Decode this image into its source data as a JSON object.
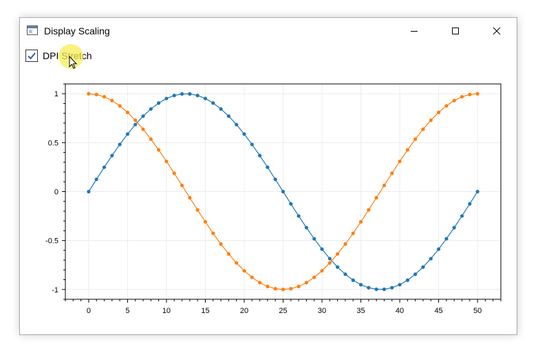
{
  "window": {
    "title": "Display Scaling",
    "icon": "window-app-icon",
    "controls": [
      "minimize-icon",
      "maximize-icon",
      "close-icon"
    ]
  },
  "checkbox": {
    "label": "DPI Stretch",
    "checked": true
  },
  "chart_data": {
    "type": "scatter",
    "title": "",
    "xlabel": "",
    "ylabel": "",
    "xlim": [
      -3,
      53
    ],
    "ylim": [
      -1.1,
      1.1
    ],
    "x_ticks": [
      "0",
      "5",
      "10",
      "15",
      "20",
      "25",
      "30",
      "35",
      "40",
      "45",
      "50"
    ],
    "y_ticks": [
      "1",
      "0.5",
      "0",
      "-0.5",
      "-1"
    ],
    "grid": true,
    "legend": "none",
    "lines": true,
    "x": [
      0,
      1,
      2,
      3,
      4,
      5,
      6,
      7,
      8,
      9,
      10,
      11,
      12,
      13,
      14,
      15,
      16,
      17,
      18,
      19,
      20,
      21,
      22,
      23,
      24,
      25,
      26,
      27,
      28,
      29,
      30,
      31,
      32,
      33,
      34,
      35,
      36,
      37,
      38,
      39,
      40,
      41,
      42,
      43,
      44,
      45,
      46,
      47,
      48,
      49,
      50
    ],
    "series": [
      {
        "color": "#1f77b4",
        "values": [
          0,
          0.125,
          0.249,
          0.368,
          0.482,
          0.588,
          0.685,
          0.771,
          0.844,
          0.905,
          0.951,
          0.982,
          0.998,
          0.998,
          0.982,
          0.951,
          0.905,
          0.844,
          0.771,
          0.685,
          0.588,
          0.482,
          0.368,
          0.249,
          0.125,
          0,
          -0.125,
          -0.249,
          -0.368,
          -0.482,
          -0.588,
          -0.685,
          -0.771,
          -0.844,
          -0.905,
          -0.951,
          -0.982,
          -0.998,
          -0.998,
          -0.982,
          -0.951,
          -0.905,
          -0.844,
          -0.771,
          -0.685,
          -0.588,
          -0.482,
          -0.368,
          -0.249,
          -0.125,
          0
        ]
      },
      {
        "color": "#ff7f0e",
        "values": [
          1,
          0.992,
          0.969,
          0.93,
          0.876,
          0.809,
          0.729,
          0.637,
          0.536,
          0.426,
          0.309,
          0.187,
          0.063,
          -0.063,
          -0.187,
          -0.309,
          -0.426,
          -0.536,
          -0.637,
          -0.729,
          -0.809,
          -0.876,
          -0.93,
          -0.969,
          -0.992,
          -1,
          -0.992,
          -0.969,
          -0.93,
          -0.876,
          -0.809,
          -0.729,
          -0.637,
          -0.536,
          -0.426,
          -0.309,
          -0.187,
          -0.063,
          0.063,
          0.187,
          0.309,
          0.426,
          0.536,
          0.637,
          0.729,
          0.809,
          0.876,
          0.93,
          0.969,
          0.992,
          1
        ]
      }
    ]
  }
}
